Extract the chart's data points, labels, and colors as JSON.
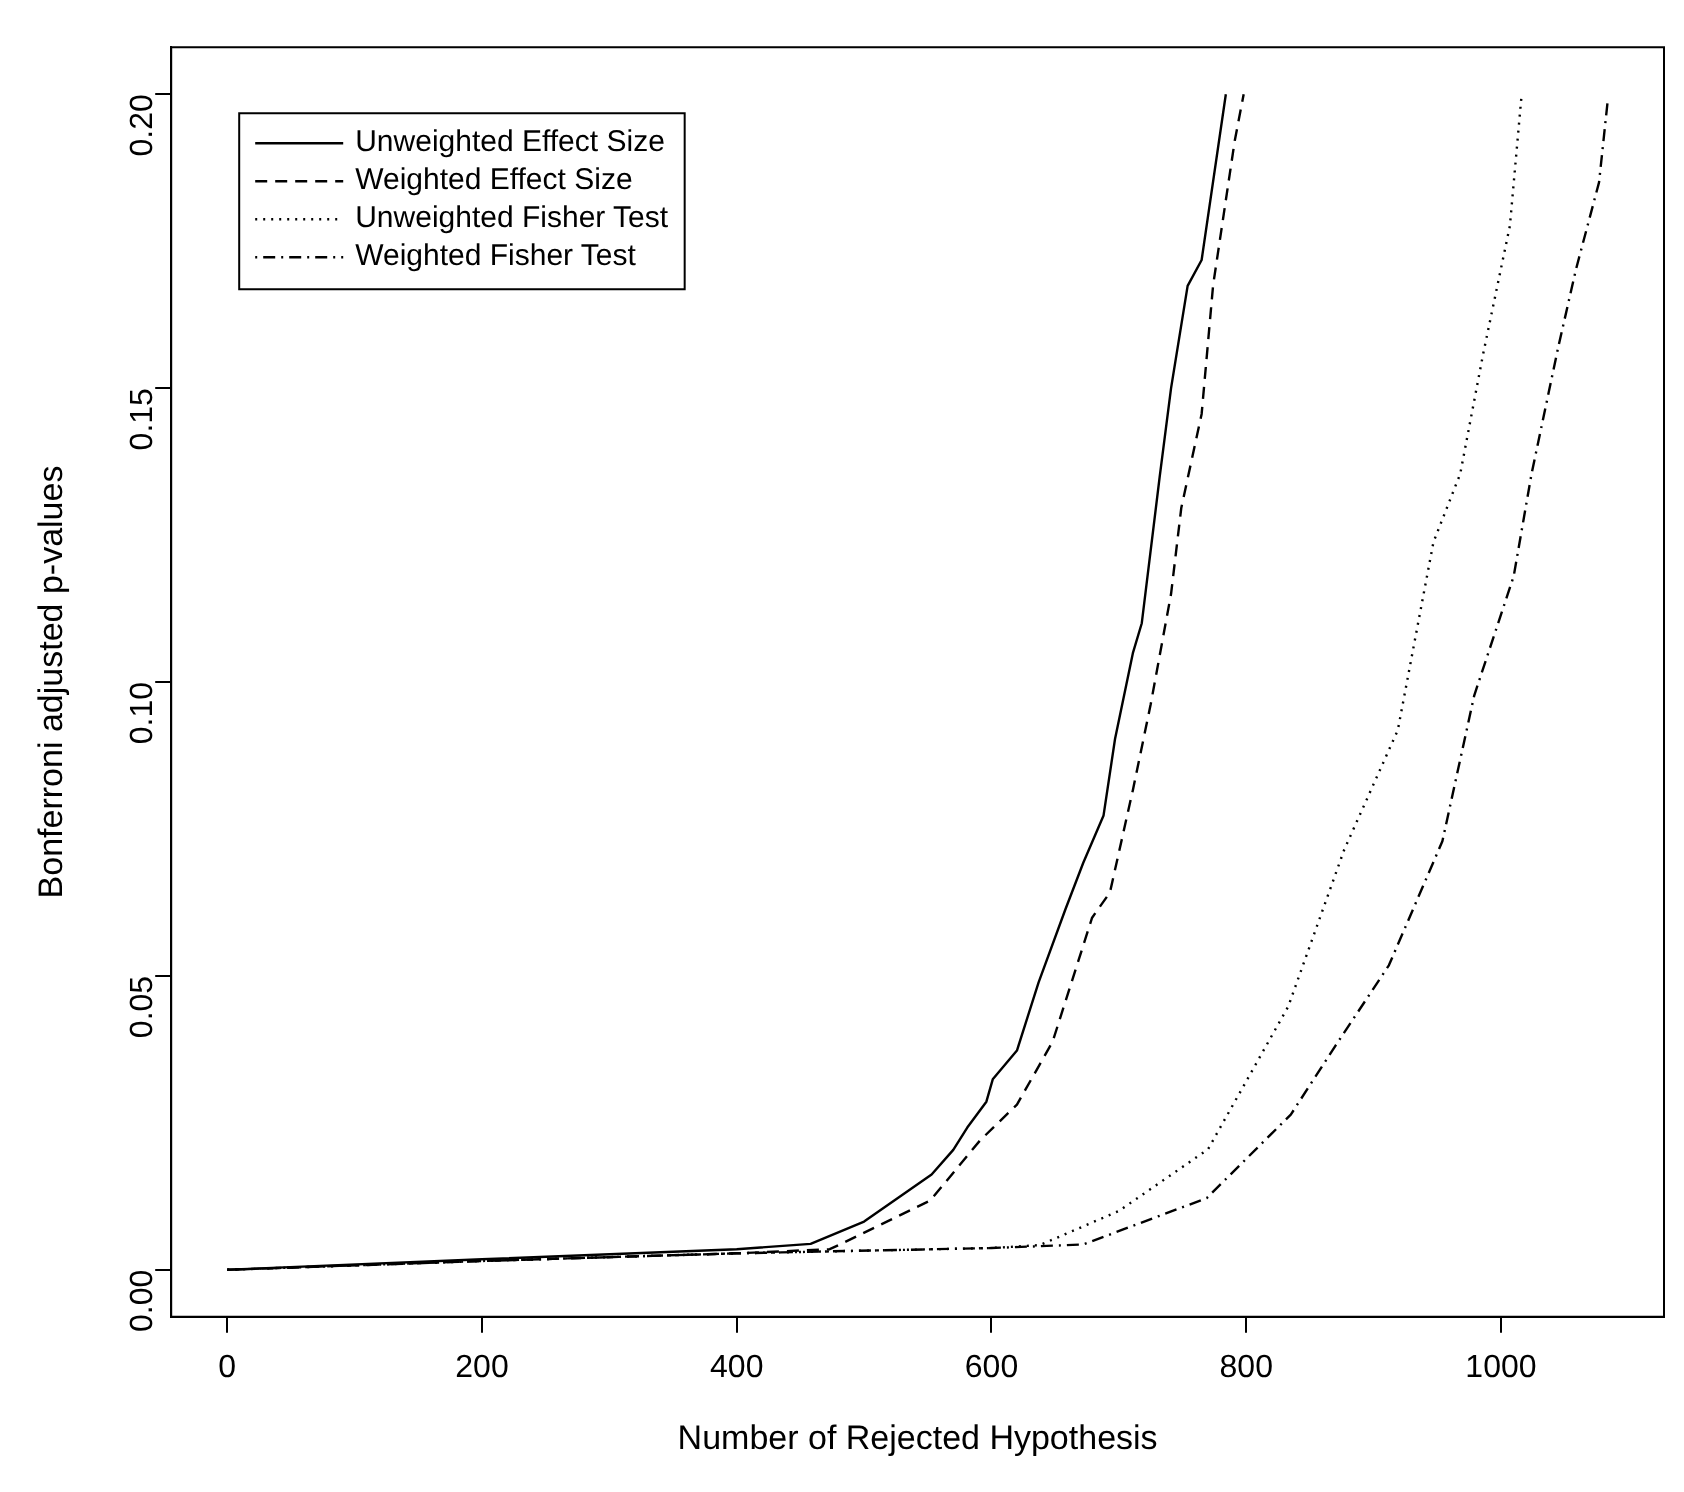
{
  "chart_data": {
    "type": "line",
    "xlabel": "Number of Rejected Hypothesis",
    "ylabel": "Bonferroni adjusted p-values",
    "xlim": [
      -44,
      1128
    ],
    "xticks": [
      0,
      200,
      400,
      600,
      800,
      1000
    ],
    "ylim": [
      -0.008,
      0.208
    ],
    "yticks": [
      {
        "value": 0,
        "label": "0.00"
      },
      {
        "value": 0.05,
        "label": "0.05"
      },
      {
        "value": 0.1,
        "label": "0.10"
      },
      {
        "value": 0.15,
        "label": "0.15"
      },
      {
        "value": 0.2,
        "label": "0.20"
      }
    ],
    "grid": false,
    "legend": "top left",
    "marker": "none",
    "series": [
      {
        "name": "Unweighted Effect Size",
        "color": "#000000",
        "line_style": "solid",
        "x": [
          0,
          200,
          400,
          458,
          500,
          553,
          570,
          581,
          596,
          601,
          620,
          637,
          658,
          672,
          688,
          697,
          711,
          718,
          732,
          741,
          754,
          765,
          784
        ],
        "values": [
          0,
          0.0018,
          0.0035,
          0.0044,
          0.0082,
          0.0162,
          0.0204,
          0.0242,
          0.0286,
          0.0324,
          0.0373,
          0.0489,
          0.0613,
          0.0692,
          0.0773,
          0.0903,
          0.1049,
          0.11,
          0.1348,
          0.15,
          0.1674,
          0.1718,
          0.2
        ]
      },
      {
        "name": "Weighted Effect Size",
        "color": "#000000",
        "line_style": "dashed",
        "x": [
          0,
          200,
          400,
          473,
          483,
          552,
          591,
          620,
          648,
          679,
          693,
          711,
          725,
          741,
          749,
          765,
          774,
          791,
          798
        ],
        "values": [
          0,
          0.0015,
          0.0028,
          0.0035,
          0.0045,
          0.0118,
          0.022,
          0.0281,
          0.0388,
          0.0599,
          0.0642,
          0.0816,
          0.0962,
          0.115,
          0.1296,
          0.1456,
          0.1675,
          0.1921,
          0.2
        ]
      },
      {
        "name": "Unweighted Fisher Test",
        "color": "#000000",
        "line_style": "dotted",
        "x": [
          0,
          200,
          400,
          600,
          638,
          700,
          770,
          833,
          877,
          919,
          947,
          968,
          986,
          1007,
          1016
        ],
        "values": [
          0,
          0.0015,
          0.0028,
          0.0037,
          0.0042,
          0.01,
          0.0205,
          0.0448,
          0.0715,
          0.0918,
          0.1238,
          0.1354,
          0.1558,
          0.1776,
          0.1994
        ]
      },
      {
        "name": "Weighted Fisher Test",
        "color": "#000000",
        "line_style": "dashdot",
        "x": [
          0,
          200,
          400,
          600,
          672,
          769,
          835,
          870,
          912,
          954,
          979,
          1010,
          1024,
          1045,
          1059,
          1077,
          1084
        ],
        "values": [
          0,
          0.0015,
          0.0028,
          0.0037,
          0.0043,
          0.0122,
          0.0264,
          0.0381,
          0.0518,
          0.0729,
          0.0977,
          0.118,
          0.1354,
          0.157,
          0.1703,
          0.185,
          0.1993
        ]
      }
    ]
  }
}
